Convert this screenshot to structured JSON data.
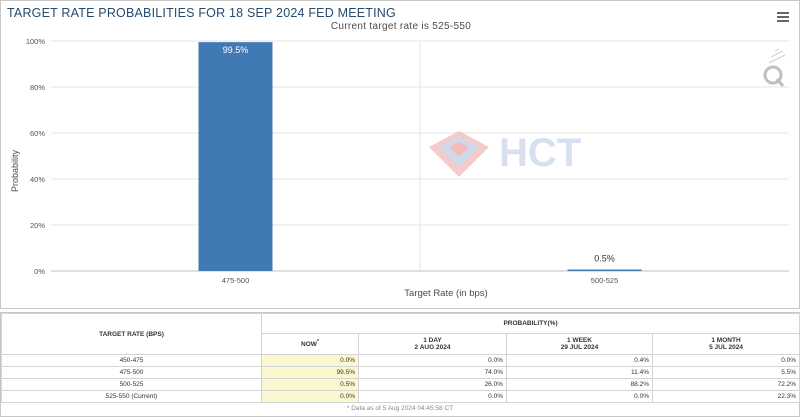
{
  "chart": {
    "title": "TARGET RATE PROBABILITIES FOR 18 SEP 2024 FED MEETING",
    "subtitle": "Current target rate is 525-550",
    "menu_icon": "hamburger-menu-icon",
    "bar_color": "#4179b4",
    "watermark_text": "HCT"
  },
  "chart_data": {
    "type": "bar",
    "title": "TARGET RATE PROBABILITIES FOR 18 SEP 2024 FED MEETING",
    "subtitle": "Current target rate is 525-550",
    "categories": [
      "475-500",
      "500-525"
    ],
    "values": [
      99.5,
      0.5
    ],
    "data_labels": [
      "99.5%",
      "0.5%"
    ],
    "xlabel": "Target Rate (in bps)",
    "ylabel": "Probability",
    "ylim": [
      0,
      100
    ],
    "yticks": [
      "0%",
      "20%",
      "40%",
      "60%",
      "80%",
      "100%"
    ],
    "grid": true
  },
  "table": {
    "col_rate_header": "TARGET RATE (BPS)",
    "col_group_header": "PROBABILITY(%)",
    "now": {
      "label": "NOW",
      "marker": "*"
    },
    "day": {
      "label": "1 DAY",
      "date": "2 AUG 2024"
    },
    "week": {
      "label": "1 WEEK",
      "date": "29 JUL 2024"
    },
    "month": {
      "label": "1 MONTH",
      "date": "5 JUL 2024"
    },
    "rows": [
      {
        "rate": "450-475",
        "now": "0.0%",
        "day": "0.0%",
        "week": "0.4%",
        "month": "0.0%"
      },
      {
        "rate": "475-500",
        "now": "99.5%",
        "day": "74.0%",
        "week": "11.4%",
        "month": "5.5%"
      },
      {
        "rate": "500-525",
        "now": "0.5%",
        "day": "26.0%",
        "week": "88.2%",
        "month": "72.2%"
      },
      {
        "rate": "525-550 (Current)",
        "now": "0.0%",
        "day": "0.0%",
        "week": "0.0%",
        "month": "22.3%"
      }
    ],
    "footnote": "* Data as of 5 Aug 2024 04:45:58 CT",
    "now_highlight_color": "#fbf7cf"
  }
}
